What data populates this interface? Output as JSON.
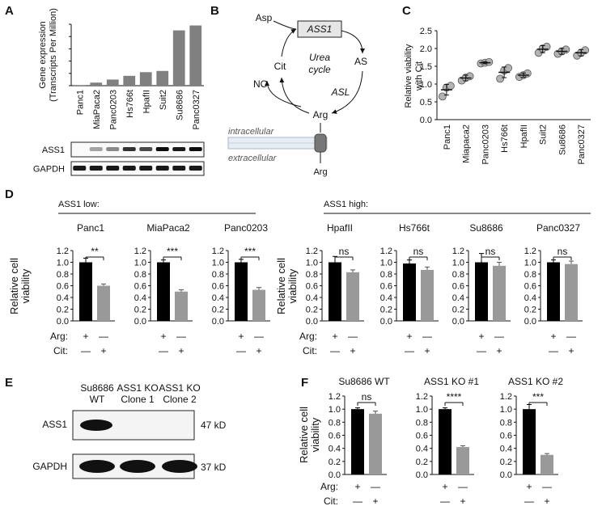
{
  "panels": {
    "A": "A",
    "B": "B",
    "C": "C",
    "D": "D",
    "E": "E",
    "F": "F"
  },
  "chart_data": [
    {
      "id": "A",
      "type": "bar",
      "ylabel_lines": [
        "Gene expression",
        "(Transcripts Per Million)"
      ],
      "ylim": [
        0,
        500
      ],
      "categories": [
        "Panc1",
        "MiaPaca2",
        "Panc0203",
        "Hs766t",
        "HpafII",
        "Suit2",
        "Su8686",
        "Panc0327"
      ],
      "values": [
        5,
        25,
        50,
        80,
        110,
        120,
        450,
        490
      ],
      "colors": [
        "#808080",
        "#808080",
        "#808080",
        "#808080",
        "#808080",
        "#808080",
        "#808080",
        "#808080"
      ],
      "blot_labels": [
        "ASS1",
        "GAPDH"
      ]
    },
    {
      "id": "C",
      "type": "scatter",
      "ylabel_lines": [
        "Relative viability",
        "with Cit"
      ],
      "ylim": [
        0,
        2.5
      ],
      "yticks": [
        "0.0",
        "0.5",
        "1.0",
        "1.5",
        "2.0",
        "2.5"
      ],
      "categories": [
        "Panc1",
        "Miapaca2",
        "Panc0203",
        "Hs766t",
        "HpafII",
        "Suit2",
        "Su8686",
        "Panc0327"
      ],
      "points": [
        [
          0.65,
          0.9,
          0.95
        ],
        [
          1.1,
          1.18,
          1.22
        ],
        [
          1.58,
          1.6,
          1.62
        ],
        [
          1.15,
          1.38,
          1.45
        ],
        [
          1.2,
          1.25,
          1.3
        ],
        [
          1.88,
          2.0,
          2.05
        ],
        [
          1.85,
          1.92,
          1.97
        ],
        [
          1.8,
          1.88,
          1.95
        ]
      ],
      "means": [
        0.84,
        1.17,
        1.6,
        1.33,
        1.25,
        1.98,
        1.92,
        1.88
      ],
      "errors": [
        0.15,
        0.08,
        0.03,
        0.15,
        0.06,
        0.1,
        0.08,
        0.09
      ]
    },
    {
      "id": "D",
      "type": "bar",
      "groups": [
        {
          "title": "ASS1 low:",
          "cells": [
            {
              "name": "Panc1",
              "values": [
                1.0,
                0.6
              ],
              "errors": [
                0.07,
                0.03
              ],
              "sig": "**"
            },
            {
              "name": "MiaPaca2",
              "values": [
                1.0,
                0.5
              ],
              "errors": [
                0.04,
                0.03
              ],
              "sig": "***"
            },
            {
              "name": "Panc0203",
              "values": [
                1.0,
                0.53
              ],
              "errors": [
                0.05,
                0.04
              ],
              "sig": "***"
            }
          ]
        },
        {
          "title": "ASS1 high:",
          "cells": [
            {
              "name": "HpafII",
              "values": [
                1.0,
                0.83
              ],
              "errors": [
                0.1,
                0.04
              ],
              "sig": "ns"
            },
            {
              "name": "Hs766t",
              "values": [
                0.98,
                0.87
              ],
              "errors": [
                0.06,
                0.05
              ],
              "sig": "ns"
            },
            {
              "name": "Su8686",
              "values": [
                1.0,
                0.94
              ],
              "errors": [
                0.15,
                0.06
              ],
              "sig": "ns"
            },
            {
              "name": "Panc0327",
              "values": [
                1.0,
                0.97
              ],
              "errors": [
                0.04,
                0.05
              ],
              "sig": "ns"
            }
          ]
        }
      ],
      "ylabel_lines": [
        "Relative cell",
        "viability"
      ],
      "ylim": [
        0,
        1.2
      ],
      "yticks": [
        "0.0",
        "0.2",
        "0.4",
        "0.6",
        "0.8",
        "1.0",
        "1.2"
      ],
      "bar_colors": [
        "#000000",
        "#999999"
      ]
    },
    {
      "id": "F",
      "type": "bar",
      "cells": [
        {
          "name": "Su8686 WT",
          "values": [
            1.0,
            0.93
          ],
          "errors": [
            0.02,
            0.04
          ],
          "sig": "ns"
        },
        {
          "name": "ASS1 KO #1",
          "values": [
            1.0,
            0.42
          ],
          "errors": [
            0.02,
            0.02
          ],
          "sig": "****"
        },
        {
          "name": "ASS1 KO #2",
          "values": [
            1.0,
            0.3
          ],
          "errors": [
            0.07,
            0.02
          ],
          "sig": "***"
        }
      ],
      "ylabel_lines": [
        "Relative cell",
        "viability"
      ],
      "ylim": [
        0,
        1.2
      ],
      "yticks": [
        "0.0",
        "0.2",
        "0.4",
        "0.6",
        "0.8",
        "1.0",
        "1.2"
      ],
      "bar_colors": [
        "#000000",
        "#999999"
      ]
    }
  ],
  "conditions": {
    "arg_label": "Arg:",
    "cit_label": "Cit:",
    "arg": [
      "+",
      "—"
    ],
    "cit": [
      "—",
      "+"
    ]
  },
  "pathway": {
    "enzyme": "ASS1",
    "asp": "Asp",
    "as": "AS",
    "cit": "Cit",
    "arg": "Arg",
    "no": "NO",
    "cycle_line1": "Urea",
    "cycle_line2": "cycle",
    "asl": "ASL",
    "intracellular": "intracellular",
    "extracellular": "extracellular",
    "arg_out": "Arg"
  },
  "blot_E": {
    "lanes": [
      [
        "Su8686",
        "WT"
      ],
      [
        "ASS1 KO",
        "Clone 1"
      ],
      [
        "ASS1 KO",
        "Clone 2"
      ]
    ],
    "rows": [
      "ASS1",
      "GAPDH"
    ],
    "sizes": [
      "47 kD",
      "37 kD"
    ]
  }
}
